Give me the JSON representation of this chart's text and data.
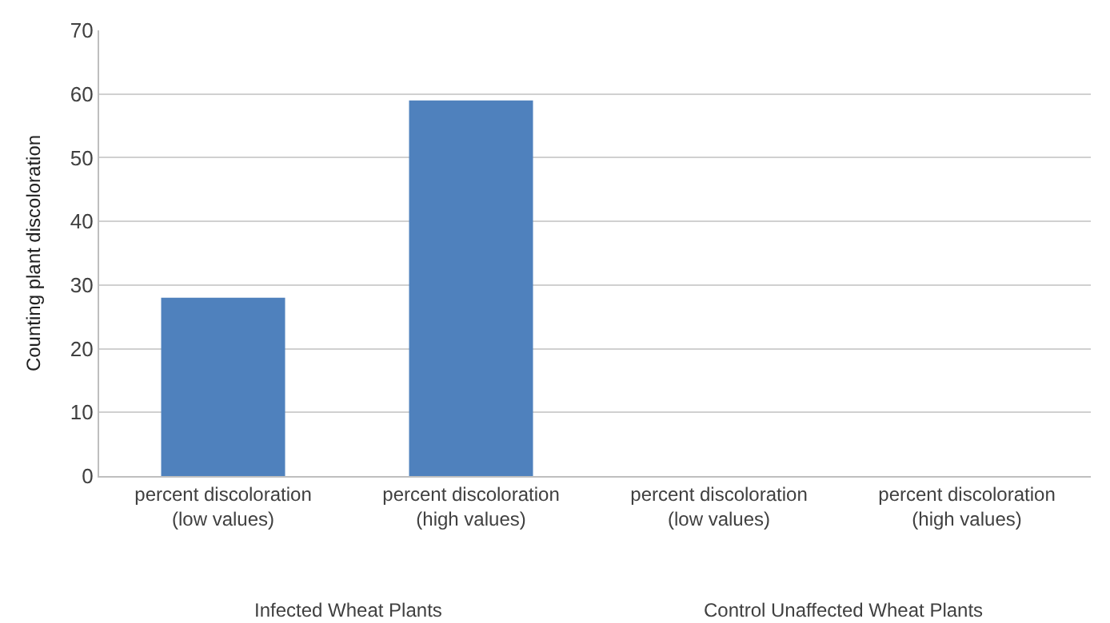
{
  "chart_data": {
    "type": "bar",
    "categories": [
      "percent discoloration (low values)",
      "percent discoloration (high values)",
      "percent discoloration (low values)",
      "percent discoloration (high values)"
    ],
    "values": [
      28,
      59,
      0,
      0
    ],
    "color": "#4f81bd",
    "ylabel": "Counting plant discoloration",
    "ylim": [
      0,
      70
    ],
    "yticks": [
      0,
      10,
      20,
      30,
      40,
      50,
      60,
      70
    ],
    "grid": "y",
    "legend": false,
    "annotations": [
      "Infected Wheat Plants",
      "Control Unaffected Wheat Plants"
    ]
  }
}
